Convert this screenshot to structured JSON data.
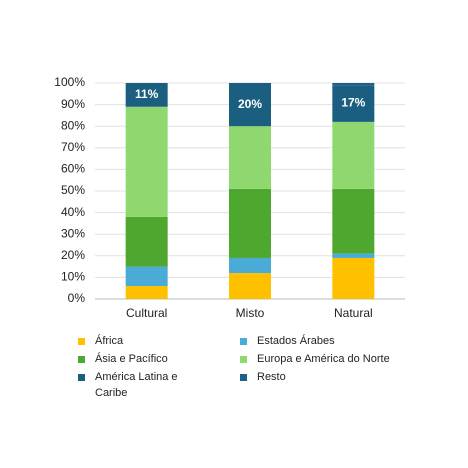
{
  "chart_data": {
    "type": "stacked_bar",
    "categories": [
      "Cultural",
      "Misto",
      "Natural"
    ],
    "series": [
      {
        "name": "África",
        "color": "#ffc000",
        "values": [
          6,
          12,
          19
        ]
      },
      {
        "name": "Estados Árabes",
        "color": "#4aacd6",
        "values": [
          9,
          7,
          2
        ]
      },
      {
        "name": "Ásia e Pacífico",
        "color": "#4ea72e",
        "values": [
          23,
          32,
          30
        ]
      },
      {
        "name": "Europa e América do Norte",
        "color": "#8fd870",
        "values": [
          51,
          29,
          31
        ]
      },
      {
        "name": "América Latina e Caribe",
        "color": "#1a5e80",
        "values": [
          11,
          20,
          17
        ],
        "value_labels": [
          "11%",
          "20%",
          "17%"
        ]
      },
      {
        "name": "Resto",
        "color": "#215f8b",
        "values": [
          0,
          0,
          1
        ]
      }
    ],
    "ylim": [
      0,
      100
    ],
    "yticks": [
      {
        "value": 0,
        "label": "0%"
      },
      {
        "value": 10,
        "label": "10%"
      },
      {
        "value": 20,
        "label": "20%"
      },
      {
        "value": 30,
        "label": "30%"
      },
      {
        "value": 40,
        "label": "40%"
      },
      {
        "value": 50,
        "label": "50%"
      },
      {
        "value": 60,
        "label": "60%"
      },
      {
        "value": 70,
        "label": "70%"
      },
      {
        "value": 80,
        "label": "80%"
      },
      {
        "value": 90,
        "label": "90%"
      },
      {
        "value": 100,
        "label": "100%"
      }
    ],
    "grid": true,
    "legend": "bottom"
  }
}
